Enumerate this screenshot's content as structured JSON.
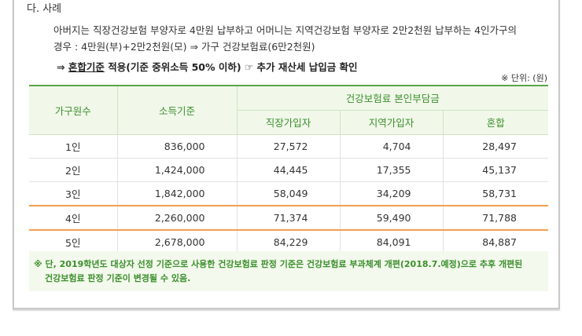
{
  "section": {
    "title": "다. 사례"
  },
  "example": {
    "line1": "아버지는 직장건강보험 부양자로 4만원 납부하고 어머니는 지역건강보험 부양자로 2만2천원 납부하는 4인가구의",
    "line2": "경우 : 4만원(부)+2만2천원(모) ⇒ 가구 건강보험료(6만2천원)",
    "line3_prefix": "⇒ ",
    "line3_underlined": "혼합기준",
    "line3_suffix": " 적용(기준 중위소득 50% 이하) ☞ 추가 재산세 납입금 확인"
  },
  "unit_note": "※ 단위: (원)",
  "table": {
    "headers": {
      "household": "가구원수",
      "income": "소득기준",
      "premium_group": "건강보험료 본인부담금",
      "employee": "직장가입자",
      "regional": "지역가입자",
      "mixed": "혼합"
    },
    "rows": [
      {
        "household": "1인",
        "income": "836,000",
        "employee": "27,572",
        "regional": "4,704",
        "mixed": "28,497"
      },
      {
        "household": "2인",
        "income": "1,424,000",
        "employee": "44,445",
        "regional": "17,355",
        "mixed": "45,137"
      },
      {
        "household": "3인",
        "income": "1,842,000",
        "employee": "58,049",
        "regional": "34,209",
        "mixed": "58,731"
      },
      {
        "household": "4인",
        "income": "2,260,000",
        "employee": "71,374",
        "regional": "59,490",
        "mixed": "71,788"
      },
      {
        "household": "5인",
        "income": "2,678,000",
        "employee": "84,229",
        "regional": "84,091",
        "mixed": "84,887"
      }
    ]
  },
  "footnote": {
    "line1": "※ 단, 2019학년도 대상자 선정 기준으로 사용한 건강보험료 판정 기준은 건강보험료 부과체계 개편(2018.7.예정)으로 추후 개편된",
    "line2": "건강보험료 판정 기준이 변경될 수 있음."
  }
}
